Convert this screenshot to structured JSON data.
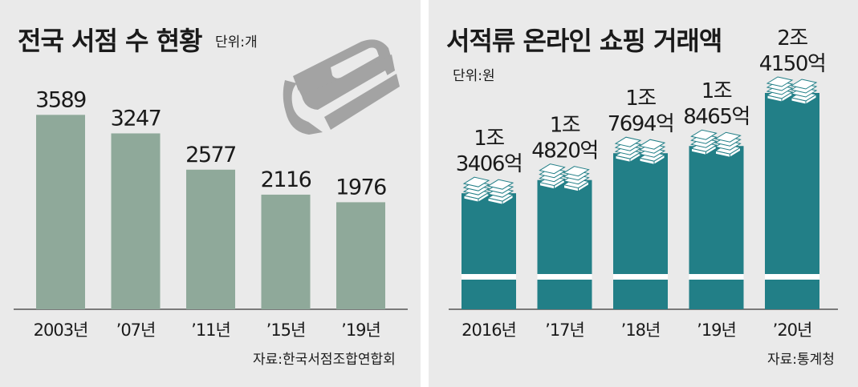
{
  "left": {
    "title": "전국 서점 수 현황",
    "unit": "단위:개",
    "source": "자료:한국서점조합연합회",
    "icon": "book-icon"
  },
  "right": {
    "title": "서적류 온라인 쇼핑 거래액",
    "unit": "단위:원",
    "source": "자료:통계청",
    "icon": "money-stack-icon"
  },
  "colors": {
    "panel_bg": "#eaeaea",
    "left_bar": "#8fa99a",
    "right_bar": "#227f87",
    "book": "#a3a3a3"
  },
  "chart_data": [
    {
      "type": "bar",
      "title": "전국 서점 수 현황",
      "unit": "단위:개",
      "categories": [
        "2003년",
        "’07년",
        "’11년",
        "’15년",
        "’19년"
      ],
      "values": [
        3589,
        3247,
        2577,
        2116,
        1976
      ],
      "value_labels": [
        "3589",
        "3247",
        "2577",
        "2116",
        "1976"
      ],
      "axis_broken": false
    },
    {
      "type": "bar",
      "title": "서적류 온라인 쇼핑 거래액",
      "unit": "단위:원",
      "categories": [
        "2016년",
        "’17년",
        "’18년",
        "’19년",
        "’20년"
      ],
      "values": [
        13406,
        14820,
        17694,
        18465,
        24150
      ],
      "value_unit": "억원",
      "value_labels": [
        [
          "1조",
          "3406억"
        ],
        [
          "1조",
          "4820억"
        ],
        [
          "1조",
          "7694억"
        ],
        [
          "1조",
          "8465억"
        ],
        [
          "2조",
          "4150억"
        ]
      ],
      "axis_broken": true
    }
  ]
}
